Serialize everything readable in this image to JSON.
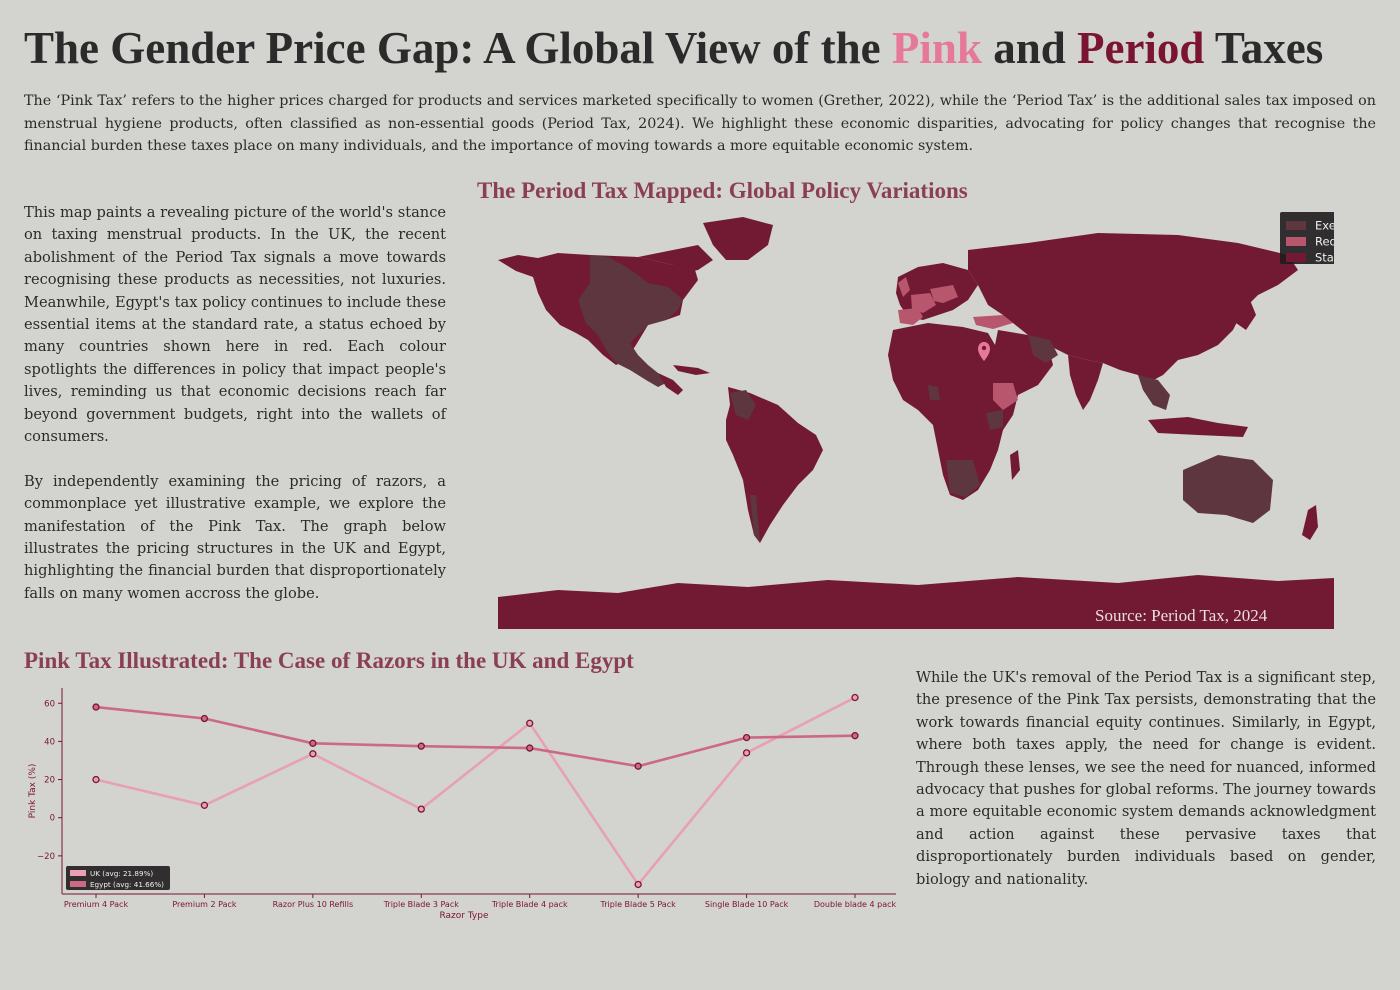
{
  "header": {
    "title_part1": "The Gender Price Gap: A Global View of the ",
    "title_pink": "Pink",
    "title_and": " and ",
    "title_period": "Period",
    "title_end": " Taxes",
    "intro": "The ‘Pink Tax’ refers to the higher prices charged for products and services marketed specifically to women (Grether, 2022), while the ‘Period Tax’ is the additional sales tax imposed on menstrual hygiene products, often classified as non-essential goods (Period Tax, 2024).  We highlight these economic disparities, advocating for policy changes that recognise the financial burden these taxes place on many individuals, and the importance of moving towards a more equitable economic system."
  },
  "left_text": {
    "para1": "This map paints a revealing picture of the world's stance on taxing menstrual products. In the UK, the recent abolishment of the Period Tax signals a move towards recognising these products as necessities, not luxuries. Meanwhile, Egypt's tax policy continues to include these essential items at the standard rate, a status echoed by many countries shown here in red. Each colour spotlights the differences in policy that impact people's lives, reminding us that economic decisions reach far beyond government budgets, right into the wallets of consumers.",
    "para2": "By independently examining the pricing of razors, a commonplace yet illustrative example, we explore the manifestation of the Pink Tax. The graph below illustrates the pricing structures in the UK and Egypt, highlighting the financial burden that disproportionately falls on many women accross the globe."
  },
  "map": {
    "title": "The Period Tax Mapped:  Global Policy Variations",
    "source": "Source: Period Tax, 2024",
    "marker_icon": "map-pin-icon",
    "legend": [
      {
        "label": "Exempt",
        "color": "#5e3640"
      },
      {
        "label": "Reduced",
        "color": "#b8566e"
      },
      {
        "label": "Standard",
        "color": "#721a33"
      }
    ],
    "colors": {
      "standard": "#721a33",
      "exempt": "#5e3640",
      "reduced": "#b8566e",
      "marker": "#e6799a"
    }
  },
  "chart_title": "Pink Tax Illustrated: The Case of Razors in the UK and Egypt",
  "right_text": "While the UK's removal of the Period Tax is a significant step, the presence of the Pink Tax persists, demonstrating that the work towards financial equity continues. Similarly, in Egypt, where both taxes apply, the need for change is evident. Through these lenses, we see the need for nuanced, informed advocacy that pushes for global reforms. The journey towards a more equitable economic system demands acknowledgment and action against these pervasive taxes that disproportionately burden individuals based on gender, biology and nationality.",
  "chart_data": {
    "type": "line",
    "xlabel": "Razor Type",
    "ylabel": "Pink Tax (%)",
    "ylim": [
      -40,
      68
    ],
    "yticks": [
      -20,
      0,
      20,
      40,
      60
    ],
    "grid": false,
    "legend_position": "bottom-left",
    "categories": [
      "Premium 4 Pack",
      "Premium 2 Pack",
      "Razor Plus 10 Refills",
      "Triple Blade 3 Pack",
      "Triple Blade 4 pack",
      "Triple Blade 5 Pack",
      "Single Blade 10 Pack",
      "Double blade 4 pack"
    ],
    "series": [
      {
        "name": "UK (avg: 21.89%)",
        "color": "#e8a0b4",
        "values": [
          20,
          6.5,
          33.5,
          4.5,
          49.5,
          -35,
          34,
          63
        ]
      },
      {
        "name": "Egypt (avg: 41.66%)",
        "color": "#cc6a86",
        "values": [
          58,
          52,
          39,
          37.5,
          36.5,
          27,
          42,
          43
        ]
      }
    ]
  }
}
